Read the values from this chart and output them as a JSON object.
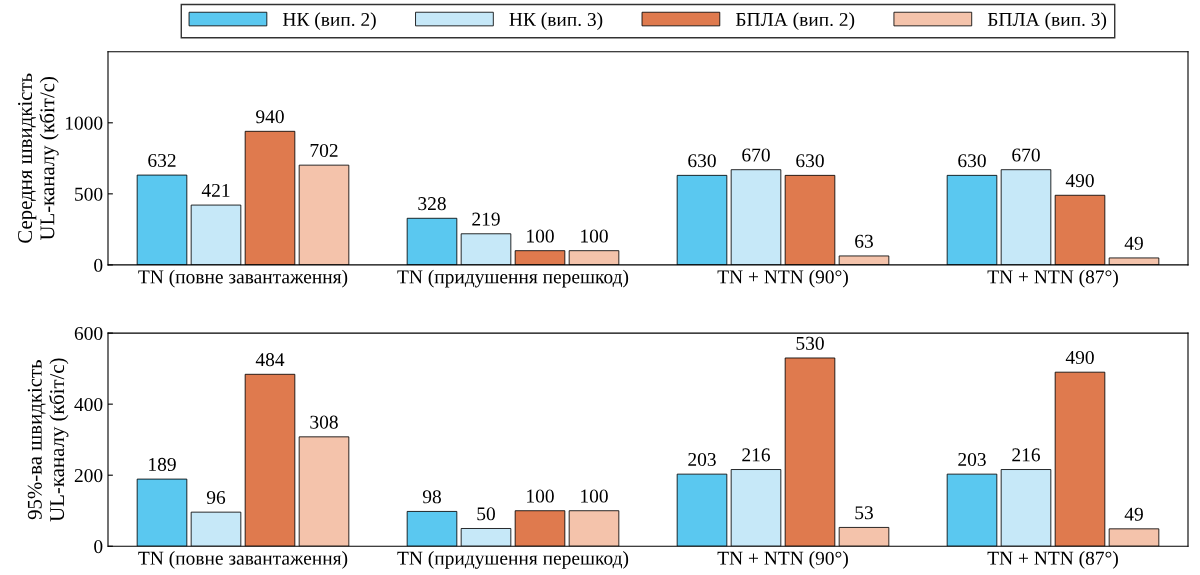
{
  "chart_data": [
    {
      "type": "bar",
      "ylabel": "Середня швидкість\nUL-каналу (кбіт/с)",
      "categories": [
        "TN (повне завантаження)",
        "TN (придушення перешкод)",
        "TN + NTN (90°)",
        "TN + NTN (87°)"
      ],
      "ylim": [
        0,
        1500
      ],
      "yticks": [
        0,
        500,
        1000
      ],
      "data_labels": true,
      "grid": false,
      "legend": "top",
      "series": [
        {
          "name": "НК (вип. 2)",
          "color": "#5ac8f0",
          "values": [
            632,
            328,
            630,
            630
          ]
        },
        {
          "name": "НК (вип. 3)",
          "color": "#c6e8f8",
          "values": [
            421,
            219,
            670,
            670
          ]
        },
        {
          "name": "БПЛА (вип. 2)",
          "color": "#df7a4e",
          "values": [
            940,
            100,
            630,
            490
          ]
        },
        {
          "name": "БПЛА (вип. 3)",
          "color": "#f4c3ab",
          "values": [
            702,
            100,
            63,
            49
          ]
        }
      ]
    },
    {
      "type": "bar",
      "ylabel": "95%-ва швидкість\nUL-каналу (кбіт/с)",
      "categories": [
        "TN (повне завантаження)",
        "TN (придушення перешкод)",
        "TN + NTN (90°)",
        "TN + NTN (87°)"
      ],
      "ylim": [
        0,
        600
      ],
      "yticks": [
        0,
        200,
        400,
        600
      ],
      "data_labels": true,
      "grid": false,
      "series": [
        {
          "color": "#5ac8f0",
          "values": [
            189,
            98,
            203,
            203
          ]
        },
        {
          "color": "#c6e8f8",
          "values": [
            96,
            50,
            216,
            216
          ]
        },
        {
          "color": "#df7a4e",
          "values": [
            484,
            100,
            530,
            490
          ]
        },
        {
          "color": "#f4c3ab",
          "values": [
            308,
            100,
            53,
            49
          ]
        }
      ]
    }
  ]
}
